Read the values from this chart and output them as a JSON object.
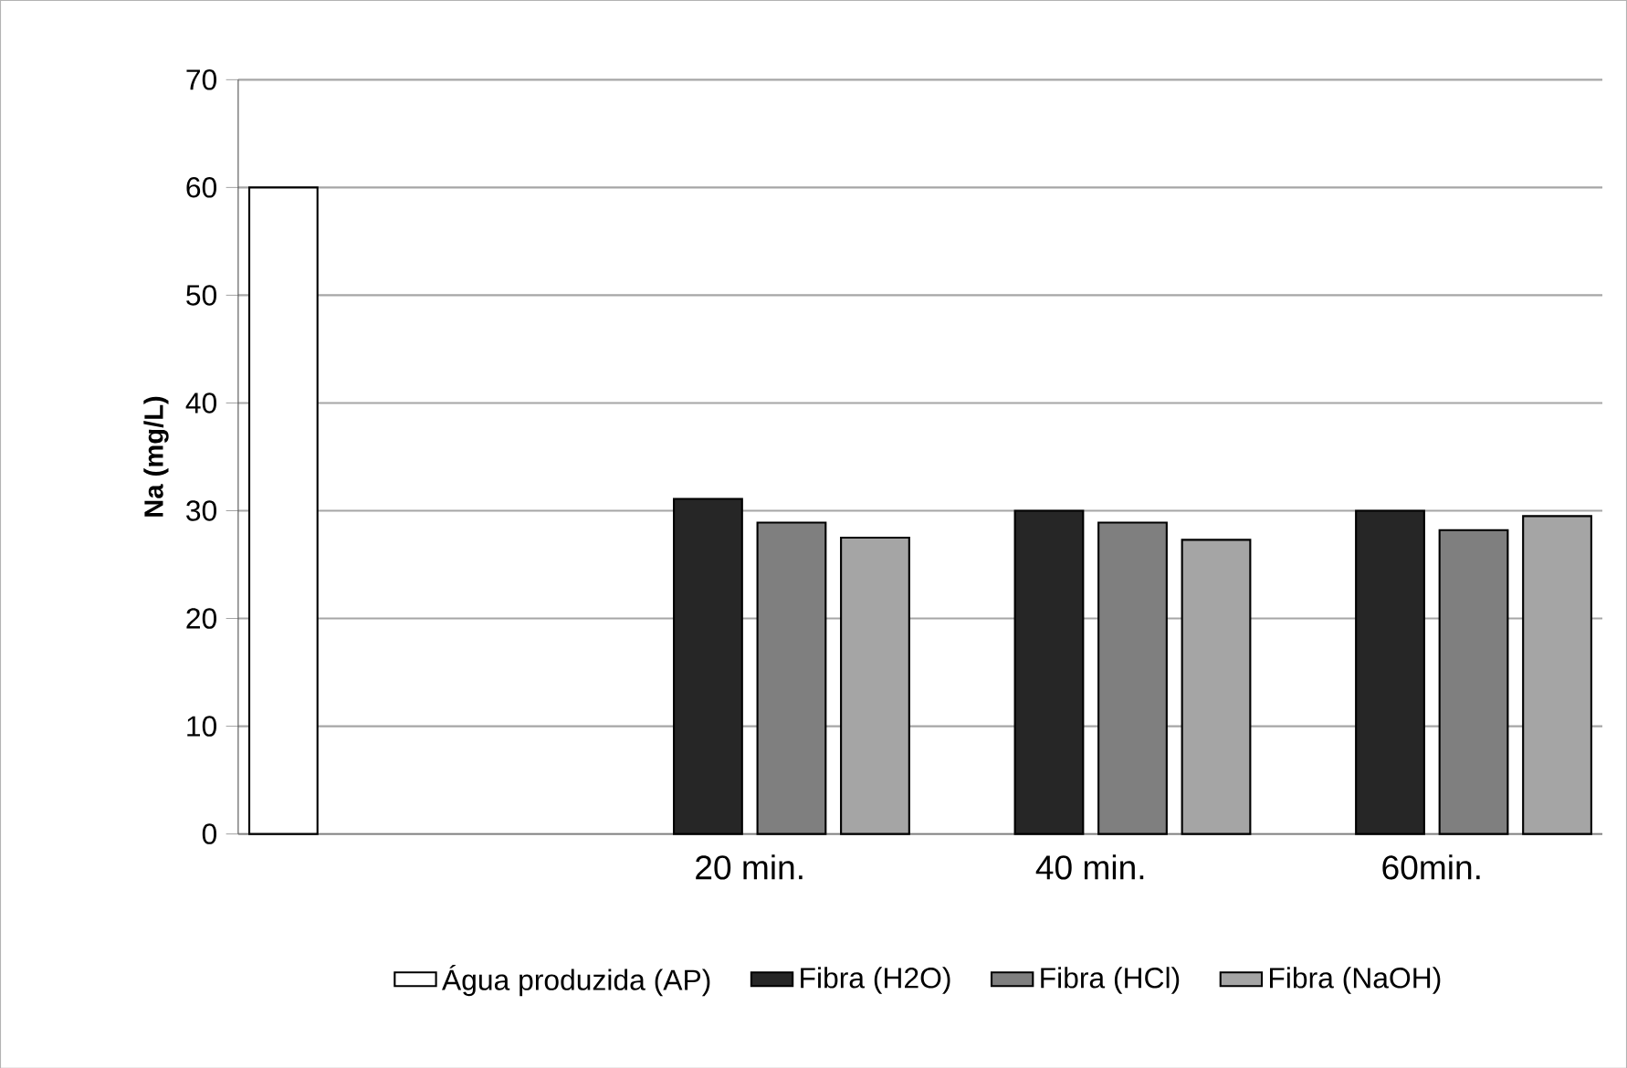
{
  "chart_data": {
    "type": "bar",
    "ylabel": "Na (mg/L)",
    "categories": [
      null,
      "20 min.",
      "40 min.",
      "60min."
    ],
    "series": [
      {
        "name": "Água produzida (AP)",
        "color": "#ffffff",
        "values": [
          60,
          null,
          null,
          null
        ]
      },
      {
        "name": "Fibra (H2O)",
        "color": "#262626",
        "values": [
          null,
          31.1,
          30,
          30
        ]
      },
      {
        "name": "Fibra (HCl)",
        "color": "#7f7f7f",
        "values": [
          null,
          28.9,
          28.9,
          28.2
        ]
      },
      {
        "name": "Fibra (NaOH)",
        "color": "#a5a5a5",
        "values": [
          null,
          27.5,
          27.3,
          29.5
        ]
      }
    ],
    "ylim": [
      0,
      70
    ],
    "yticks": [
      0,
      10,
      20,
      30,
      40,
      50,
      60,
      70
    ],
    "grid": "y",
    "legend": "bottom"
  }
}
